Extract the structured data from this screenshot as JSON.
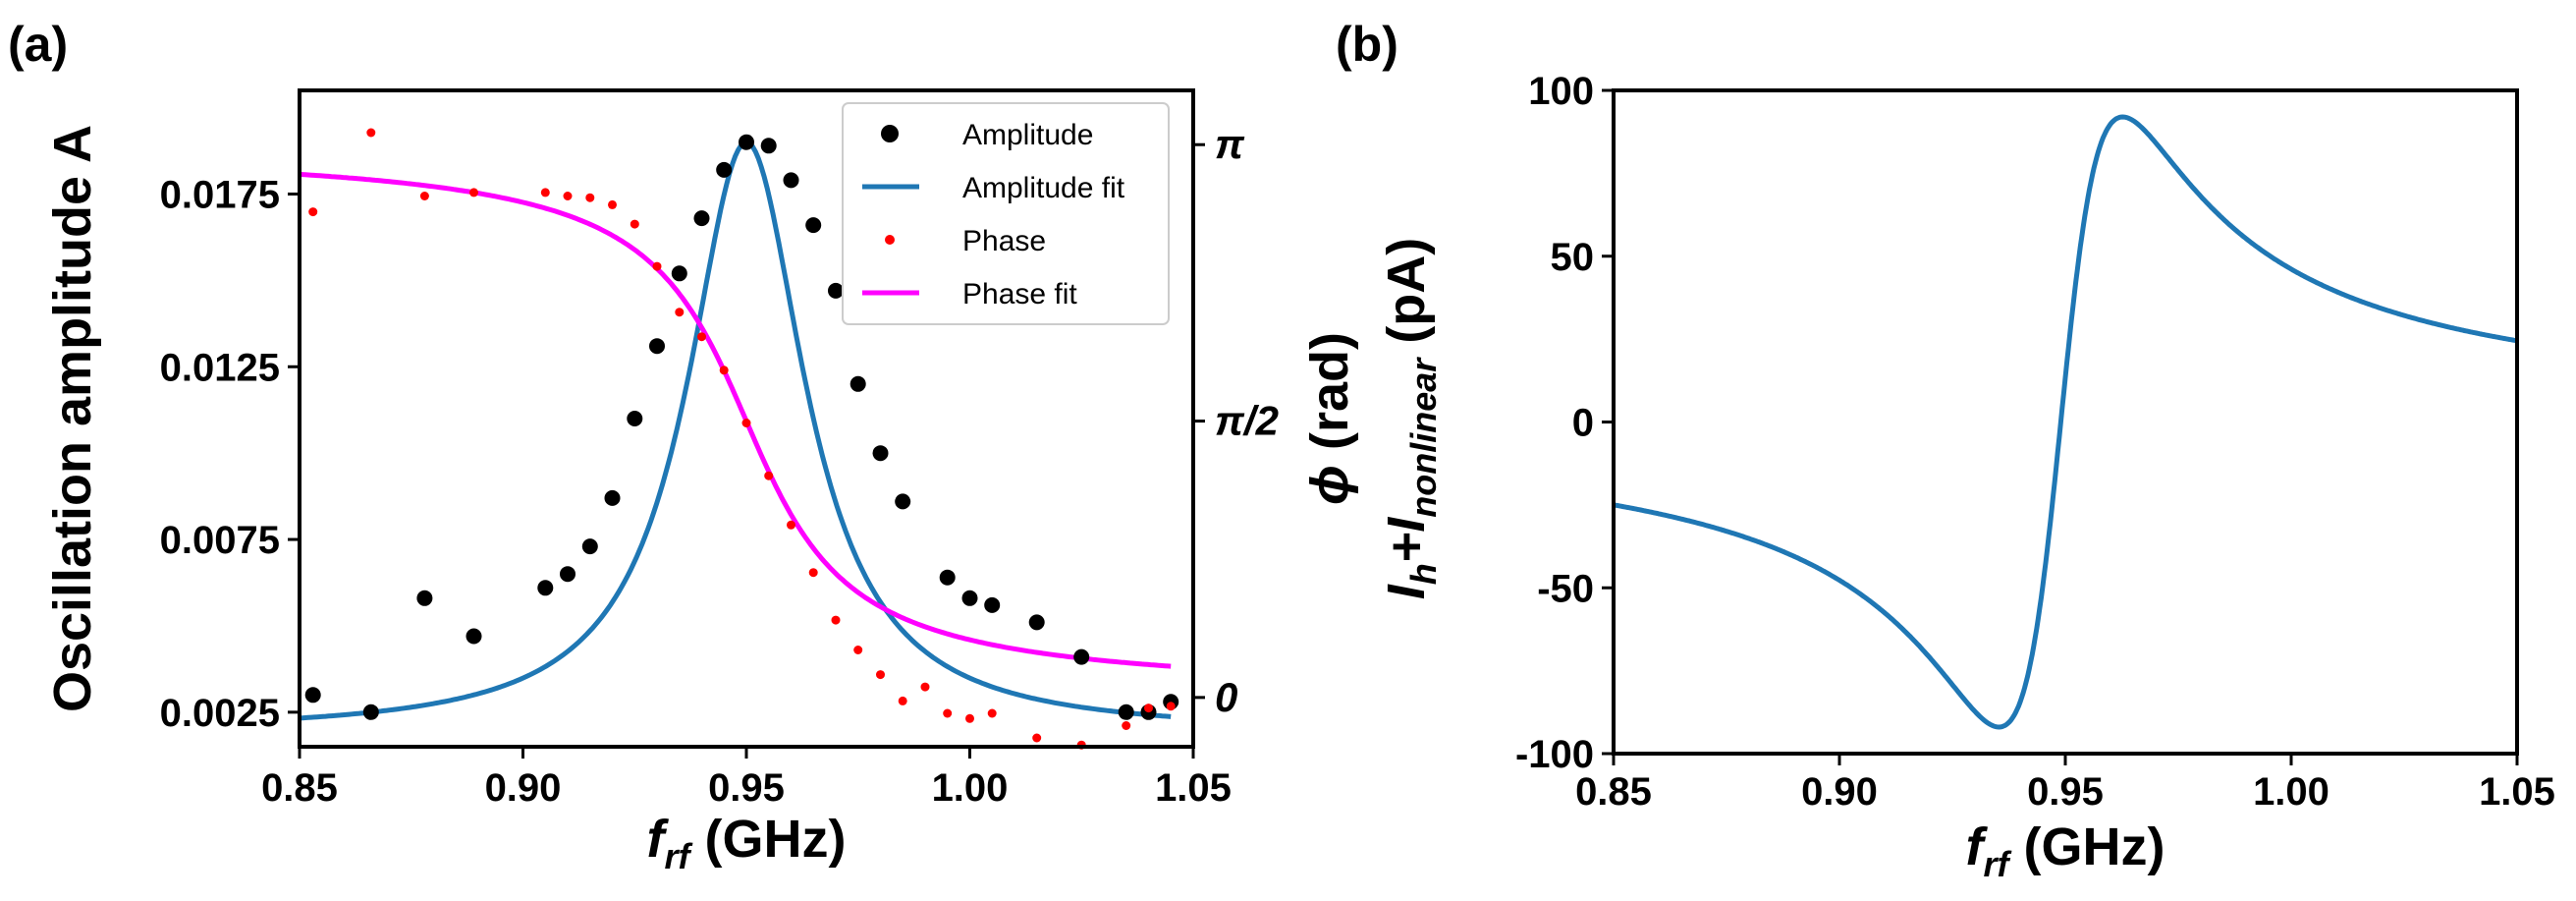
{
  "colors": {
    "amplitude": "#000000",
    "amplitude_fit": "#1f77b4",
    "phase": "#ff0000",
    "phase_fit": "#ff00ff",
    "current": "#1f77b4"
  },
  "chart_data": [
    {
      "panel": "(a)",
      "type": "scatter",
      "x_label_main": "f",
      "x_label_sub": "rf",
      "x_label_unit": " (GHz)",
      "y_label_left": "Oscillation amplitude A",
      "y_label_right_symbol": "ϕ",
      "y_label_right_unit": " (rad)",
      "xlim": [
        0.85,
        1.05
      ],
      "ylim_left": [
        0.0015,
        0.0205
      ],
      "ylim_right": [
        -0.28,
        3.45
      ],
      "x_ticks": [
        {
          "value": 0.85,
          "label": "0.85"
        },
        {
          "value": 0.9,
          "label": "0.90"
        },
        {
          "value": 0.95,
          "label": "0.95"
        },
        {
          "value": 1.0,
          "label": "1.00"
        },
        {
          "value": 1.05,
          "label": "1.05"
        }
      ],
      "y_ticks_left": [
        {
          "value": 0.0025,
          "label": "0.0025"
        },
        {
          "value": 0.0075,
          "label": "0.0075"
        },
        {
          "value": 0.0125,
          "label": "0.0125"
        },
        {
          "value": 0.0175,
          "label": "0.0175"
        }
      ],
      "y_ticks_right": [
        {
          "value": 0,
          "label": "0"
        },
        {
          "value": 1.5708,
          "label": "π/2"
        },
        {
          "value": 3.1416,
          "label": "π"
        }
      ],
      "legend": [
        {
          "label": "Amplitude",
          "kind": "marker",
          "color": "#000000"
        },
        {
          "label": "Amplitude fit",
          "kind": "line",
          "color": "#1f77b4"
        },
        {
          "label": "Phase",
          "kind": "smallmarker",
          "color": "#ff0000"
        },
        {
          "label": "Phase fit",
          "kind": "line",
          "color": "#ff00ff"
        }
      ],
      "amplitude": {
        "name": "Amplitude",
        "x": [
          0.853,
          0.866,
          0.878,
          0.889,
          0.905,
          0.91,
          0.915,
          0.92,
          0.925,
          0.93,
          0.935,
          0.94,
          0.945,
          0.95,
          0.955,
          0.96,
          0.965,
          0.97,
          0.975,
          0.98,
          0.985,
          0.995,
          1.0,
          1.005,
          1.015,
          1.025,
          1.035,
          1.04,
          1.045
        ],
        "y": [
          0.003,
          0.0025,
          0.0058,
          0.0047,
          0.0061,
          0.0065,
          0.0073,
          0.0087,
          0.011,
          0.0131,
          0.0152,
          0.0168,
          0.0182,
          0.019,
          0.0189,
          0.0179,
          0.0166,
          0.0147,
          0.012,
          0.01,
          0.0086,
          0.0064,
          0.0058,
          0.0056,
          0.0051,
          0.0041,
          0.0025,
          0.0025,
          0.0028
        ]
      },
      "amplitude_fit": {
        "name": "Amplitude fit",
        "f0": 0.95,
        "hwhm": 0.016,
        "baseline": 0.0019,
        "peak": 0.0171,
        "x_range": [
          0.85,
          1.045
        ]
      },
      "phase": {
        "name": "Phase",
        "x": [
          0.853,
          0.866,
          0.878,
          0.889,
          0.905,
          0.91,
          0.915,
          0.92,
          0.925,
          0.93,
          0.935,
          0.94,
          0.945,
          0.95,
          0.955,
          0.96,
          0.965,
          0.97,
          0.975,
          0.98,
          0.985,
          0.99,
          0.995,
          1.0,
          1.005,
          1.015,
          1.025,
          1.035,
          1.04,
          1.045
        ],
        "y": [
          2.76,
          3.21,
          2.85,
          2.87,
          2.87,
          2.85,
          2.84,
          2.8,
          2.69,
          2.45,
          2.19,
          2.05,
          1.86,
          1.56,
          1.26,
          0.98,
          0.71,
          0.44,
          0.27,
          0.13,
          -0.02,
          0.06,
          -0.09,
          -0.12,
          -0.09,
          -0.23,
          -0.27,
          -0.16,
          -0.06,
          -0.05
        ]
      },
      "phase_fit": {
        "name": "Phase fit",
        "f0": 0.95,
        "hwhm": 0.017,
        "x_range": [
          0.85,
          1.045
        ]
      }
    },
    {
      "panel": "(b)",
      "type": "line",
      "x_label_main": "f",
      "x_label_sub": "rf",
      "x_label_unit": " (GHz)",
      "y_label_prefix": "I",
      "y_label_sub1": "h",
      "y_label_mid": "+I",
      "y_label_sub2": "nonlinear",
      "y_label_unit": " (pA)",
      "xlim": [
        0.85,
        1.05
      ],
      "ylim": [
        -100,
        100
      ],
      "x_ticks": [
        {
          "value": 0.85,
          "label": "0.85"
        },
        {
          "value": 0.9,
          "label": "0.90"
        },
        {
          "value": 0.95,
          "label": "0.95"
        },
        {
          "value": 1.0,
          "label": "1.00"
        },
        {
          "value": 1.05,
          "label": "1.05"
        }
      ],
      "y_ticks": [
        {
          "value": -100,
          "label": "-100"
        },
        {
          "value": -50,
          "label": "-50"
        },
        {
          "value": 0,
          "label": "0"
        },
        {
          "value": 50,
          "label": "50"
        },
        {
          "value": 100,
          "label": "100"
        }
      ],
      "series": {
        "name": "Ih+Inonlinear",
        "f0": 0.949,
        "gamma": 0.0137,
        "scale": 2.52,
        "peak_max": 92,
        "peak_min": -92,
        "x_range": [
          0.85,
          1.05
        ]
      }
    }
  ]
}
